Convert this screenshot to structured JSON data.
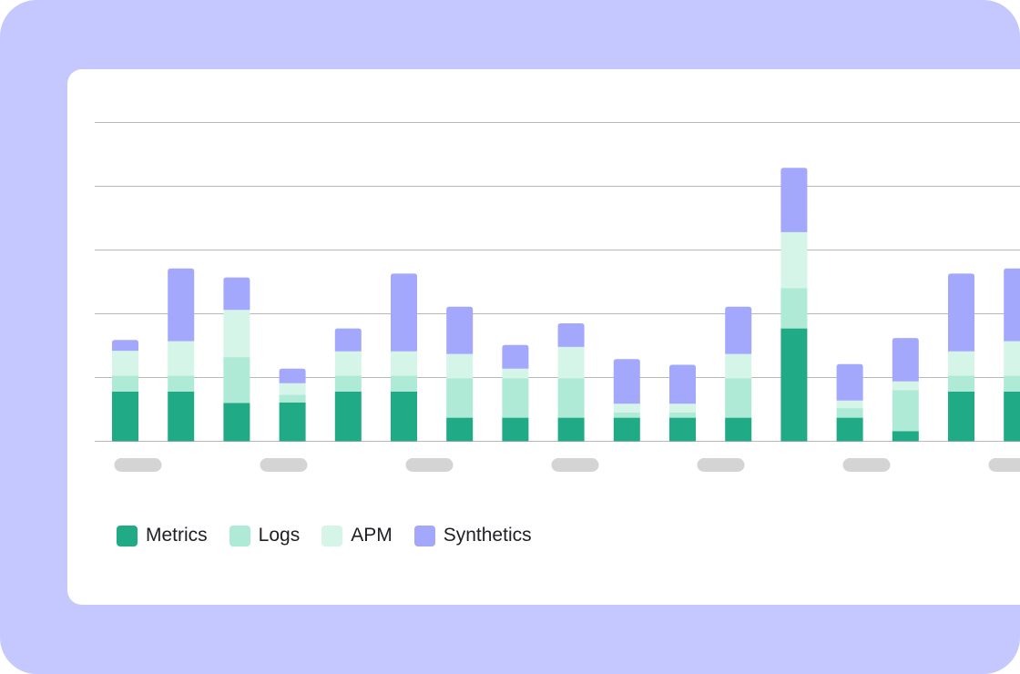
{
  "chart_data": {
    "type": "bar",
    "stacked": true,
    "ylim": [
      0,
      5
    ],
    "grid": true,
    "legend_position": "bottom-left",
    "categories": [
      "",
      "",
      "",
      "",
      "",
      "",
      "",
      "",
      "",
      "",
      "",
      "",
      "",
      "",
      "",
      "",
      ""
    ],
    "series": [
      {
        "name": "Metrics",
        "color": "#20ab86",
        "values": [
          0.78,
          0.78,
          0.6,
          0.61,
          0.78,
          0.78,
          0.37,
          0.37,
          0.37,
          0.37,
          0.37,
          0.37,
          1.77,
          0.37,
          0.16,
          0.78,
          0.78
        ]
      },
      {
        "name": "Logs",
        "color": "#aeead6",
        "values": [
          0.25,
          0.25,
          0.72,
          0.12,
          0.25,
          0.25,
          0.62,
          0.62,
          0.62,
          0.08,
          0.08,
          0.62,
          0.63,
          0.15,
          0.64,
          0.25,
          0.25
        ]
      },
      {
        "name": "APM",
        "color": "#d6f5e9",
        "values": [
          0.39,
          0.54,
          0.74,
          0.18,
          0.38,
          0.38,
          0.38,
          0.15,
          0.49,
          0.14,
          0.14,
          0.38,
          0.88,
          0.12,
          0.14,
          0.38,
          0.54
        ]
      },
      {
        "name": "Synthetics",
        "color": "#a3a8fc",
        "values": [
          0.17,
          1.14,
          0.51,
          0.23,
          0.36,
          1.22,
          0.74,
          0.37,
          0.37,
          0.7,
          0.61,
          0.74,
          1.01,
          0.57,
          0.68,
          1.22,
          1.14
        ]
      }
    ]
  },
  "style": {
    "frame_color": "#c5c8fe",
    "card_color": "#ffffff",
    "grid_color": "#b8b8b8",
    "tick_placeholder_color": "#d4d4d4"
  },
  "tick_placeholders": 7
}
